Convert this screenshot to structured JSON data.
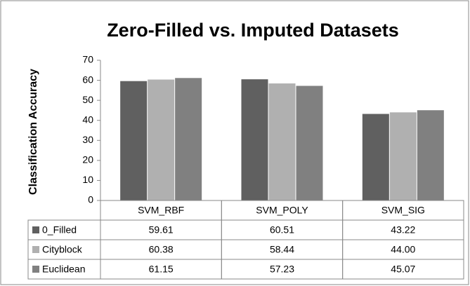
{
  "chart_data": {
    "type": "bar",
    "title": "Zero-Filled vs. Imputed Datasets",
    "y_label": "Classification Accuracy",
    "categories": [
      "SVM_RBF",
      "SVM_POLY",
      "SVM_SIG"
    ],
    "series": [
      {
        "name": "0_Filled",
        "color": "#606060",
        "values": [
          59.61,
          60.51,
          43.22
        ],
        "value_labels": [
          "59.61",
          "60.51",
          "43.22"
        ]
      },
      {
        "name": "Cityblock",
        "color": "#b0b0b0",
        "values": [
          60.38,
          58.44,
          44.0
        ],
        "value_labels": [
          "60.38",
          "58.44",
          "44.00"
        ]
      },
      {
        "name": "Euclidean",
        "color": "#808080",
        "values": [
          61.15,
          57.23,
          45.07
        ],
        "value_labels": [
          "61.15",
          "57.23",
          "45.07"
        ]
      }
    ],
    "ylim": [
      0,
      70
    ],
    "yticks": [
      0,
      10,
      20,
      30,
      40,
      50,
      60,
      70
    ],
    "grid": false
  }
}
